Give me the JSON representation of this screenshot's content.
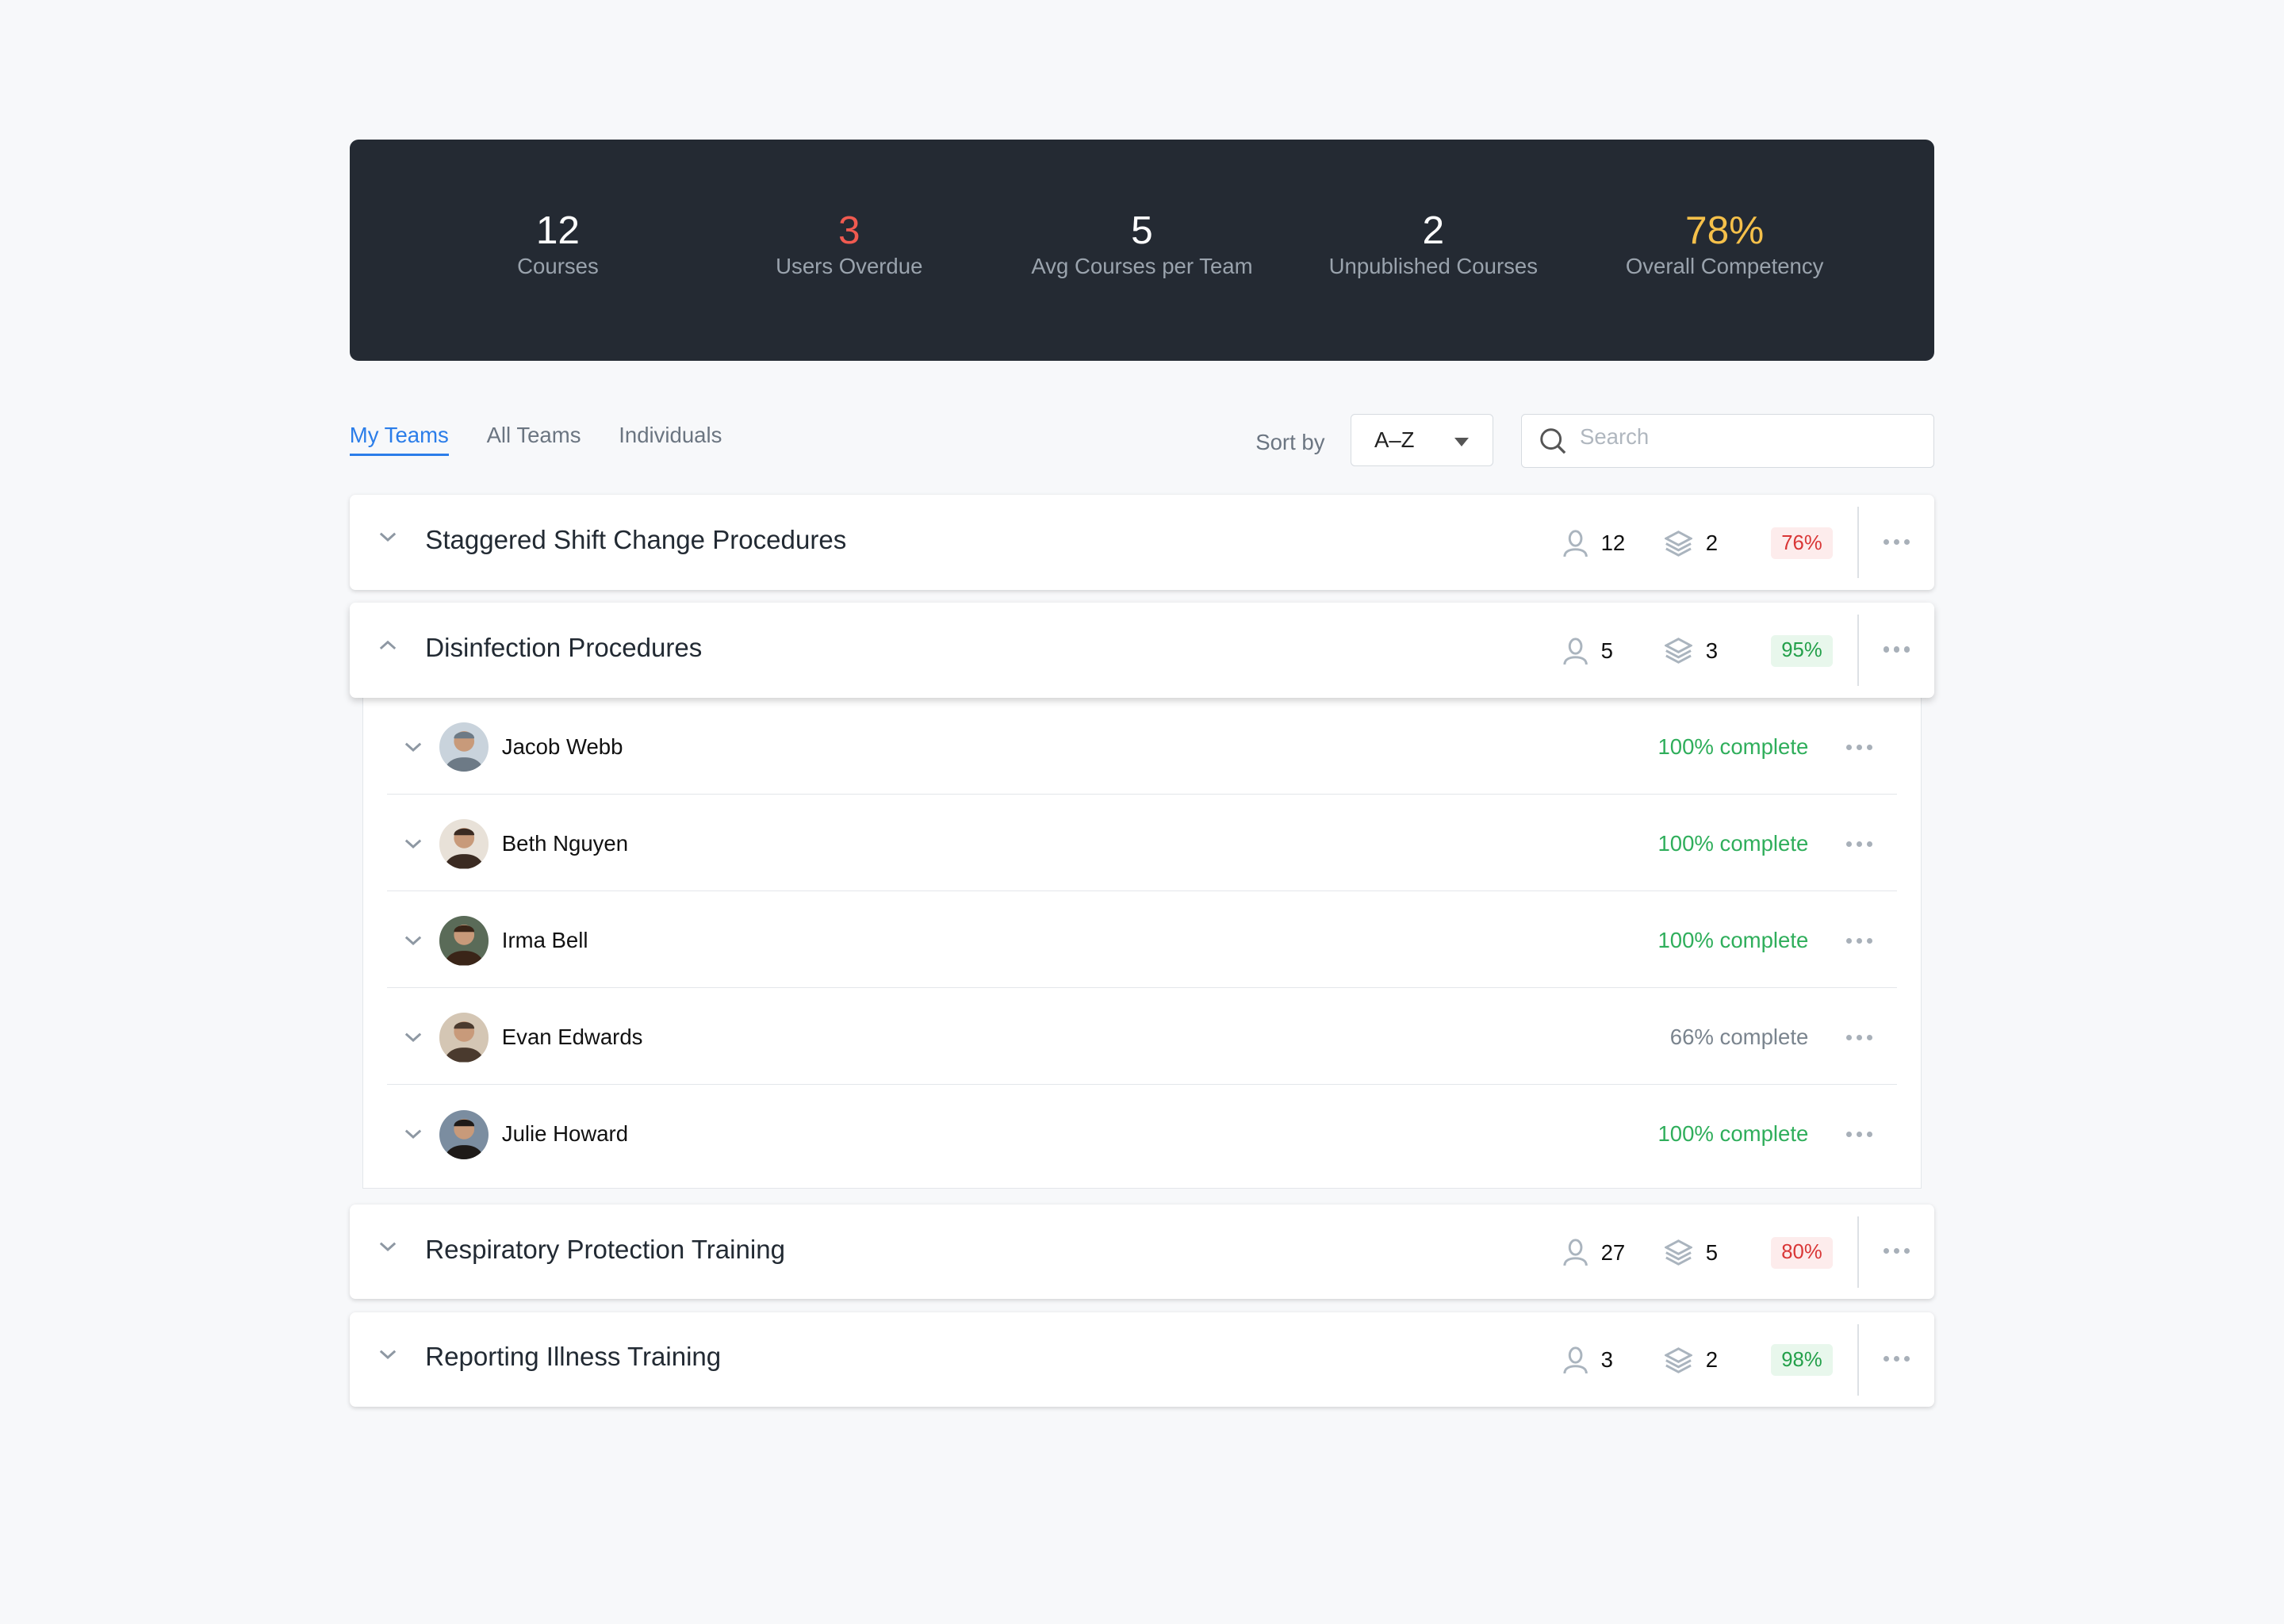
{
  "stats": [
    {
      "value": "12",
      "label": "Courses",
      "color": "#ffffff"
    },
    {
      "value": "3",
      "label": "Users Overdue",
      "color": "#f05a50"
    },
    {
      "value": "5",
      "label": "Avg Courses per Team",
      "color": "#ffffff"
    },
    {
      "value": "2",
      "label": "Unpublished Courses",
      "color": "#ffffff"
    },
    {
      "value": "78%",
      "label": "Overall Competency",
      "color": "#f5c04a"
    }
  ],
  "tabs": [
    {
      "label": "My Teams",
      "active": true
    },
    {
      "label": "All Teams"
    },
    {
      "label": "Individuals"
    }
  ],
  "sort": {
    "label": "Sort by",
    "value": "A–Z"
  },
  "search": {
    "placeholder": "Search"
  },
  "teams": [
    {
      "title": "Staggered Shift Change Procedures",
      "users": "12",
      "courses": "2",
      "competency": "76%",
      "status": "red",
      "expanded": false
    },
    {
      "title": "Disinfection Procedures",
      "users": "5",
      "courses": "3",
      "competency": "95%",
      "status": "green",
      "expanded": true,
      "members": [
        {
          "name": "Jacob Webb",
          "progress": "100% complete",
          "complete": true
        },
        {
          "name": "Beth Nguyen",
          "progress": "100% complete",
          "complete": true
        },
        {
          "name": "Irma Bell",
          "progress": "100% complete",
          "complete": true
        },
        {
          "name": "Evan Edwards",
          "progress": "66% complete",
          "complete": false
        },
        {
          "name": "Julie Howard",
          "progress": "100% complete",
          "complete": true
        }
      ]
    },
    {
      "title": "Respiratory Protection Training",
      "users": "27",
      "courses": "5",
      "competency": "80%",
      "status": "red",
      "expanded": false
    },
    {
      "title": "Reporting Illness Training",
      "users": "3",
      "courses": "2",
      "competency": "98%",
      "status": "green",
      "expanded": false
    }
  ]
}
